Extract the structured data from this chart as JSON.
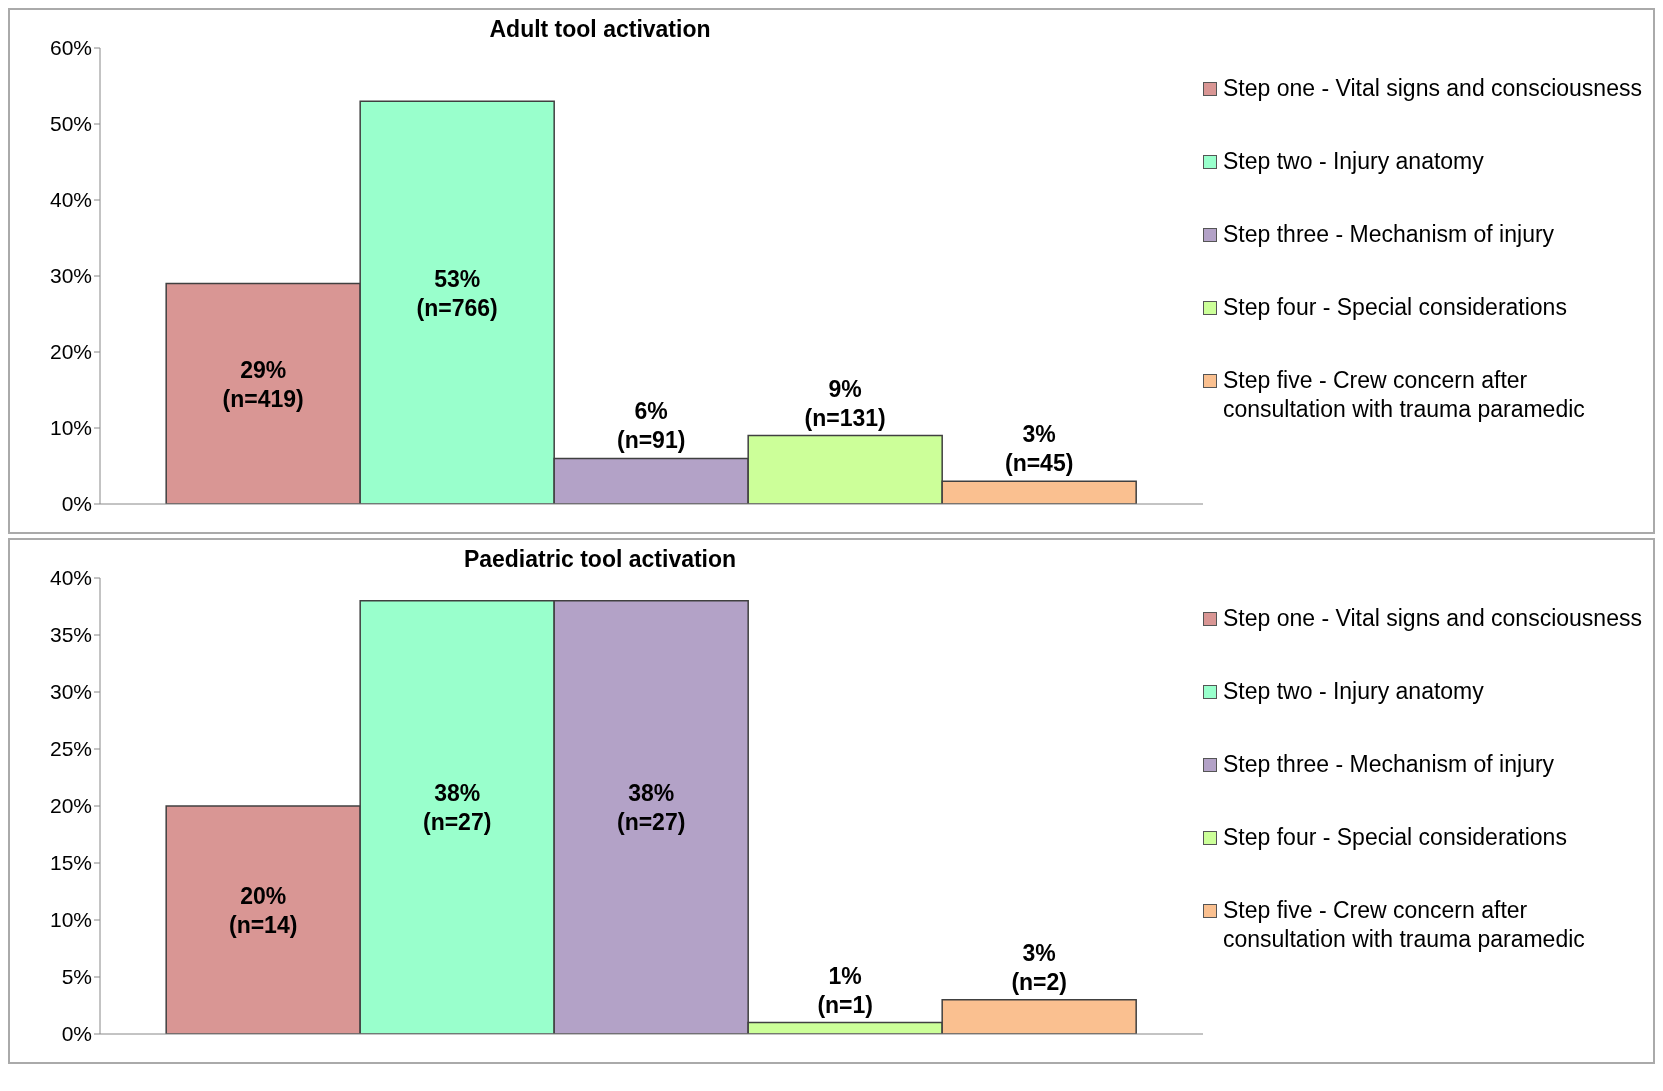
{
  "chart_data": [
    {
      "type": "bar",
      "title": "Adult tool activation",
      "categories": [
        null
      ],
      "ylim": [
        0,
        60
      ],
      "yticks": [
        {
          "value": 0,
          "label": "0%"
        },
        {
          "value": 10,
          "label": "10%"
        },
        {
          "value": 20,
          "label": "20%"
        },
        {
          "value": 30,
          "label": "30%"
        },
        {
          "value": 40,
          "label": "40%"
        },
        {
          "value": 50,
          "label": "50%"
        },
        {
          "value": 60,
          "label": "60%"
        }
      ],
      "legend": "right",
      "series": [
        {
          "name": "Step one - Vital signs and consciousness",
          "color": "#d99694",
          "values": [
            29
          ],
          "value_labels": [
            "29%\n(n=419)"
          ]
        },
        {
          "name": "Step two - Injury anatomy",
          "color": "#99ffcc",
          "values": [
            53
          ],
          "value_labels": [
            "53%\n(n=766)"
          ]
        },
        {
          "name": "Step three - Mechanism of injury",
          "color": "#b3a2c7",
          "values": [
            6
          ],
          "value_labels": [
            "6%\n(n=91)"
          ]
        },
        {
          "name": "Step four - Special considerations",
          "color": "#ccff99",
          "values": [
            9
          ],
          "value_labels": [
            "9%\n(n=131)"
          ]
        },
        {
          "name": "Step five - Crew concern after consultation with trauma paramedic",
          "color": "#fac090",
          "values": [
            3
          ],
          "value_labels": [
            "3%\n(n=45)"
          ]
        }
      ]
    },
    {
      "type": "bar",
      "title": "Paediatric tool activation",
      "categories": [
        null
      ],
      "ylim": [
        0,
        40
      ],
      "yticks": [
        {
          "value": 0,
          "label": "0%"
        },
        {
          "value": 5,
          "label": "5%"
        },
        {
          "value": 10,
          "label": "10%"
        },
        {
          "value": 15,
          "label": "15%"
        },
        {
          "value": 20,
          "label": "20%"
        },
        {
          "value": 25,
          "label": "25%"
        },
        {
          "value": 30,
          "label": "30%"
        },
        {
          "value": 35,
          "label": "35%"
        },
        {
          "value": 40,
          "label": "40%"
        }
      ],
      "legend": "right",
      "series": [
        {
          "name": "Step one - Vital signs and consciousness",
          "color": "#d99694",
          "values": [
            20
          ],
          "value_labels": [
            "20%\n(n=14)"
          ]
        },
        {
          "name": "Step two - Injury anatomy",
          "color": "#99ffcc",
          "values": [
            38
          ],
          "value_labels": [
            "38%\n(n=27)"
          ]
        },
        {
          "name": "Step three - Mechanism of injury",
          "color": "#b3a2c7",
          "values": [
            38
          ],
          "value_labels": [
            "38%\n(n=27)"
          ]
        },
        {
          "name": "Step four - Special considerations",
          "color": "#ccff99",
          "values": [
            1
          ],
          "value_labels": [
            "1%\n(n=1)"
          ]
        },
        {
          "name": "Step five - Crew concern after consultation with trauma paramedic",
          "color": "#fac090",
          "values": [
            3
          ],
          "value_labels": [
            "3%\n(n=2)"
          ]
        }
      ]
    }
  ]
}
